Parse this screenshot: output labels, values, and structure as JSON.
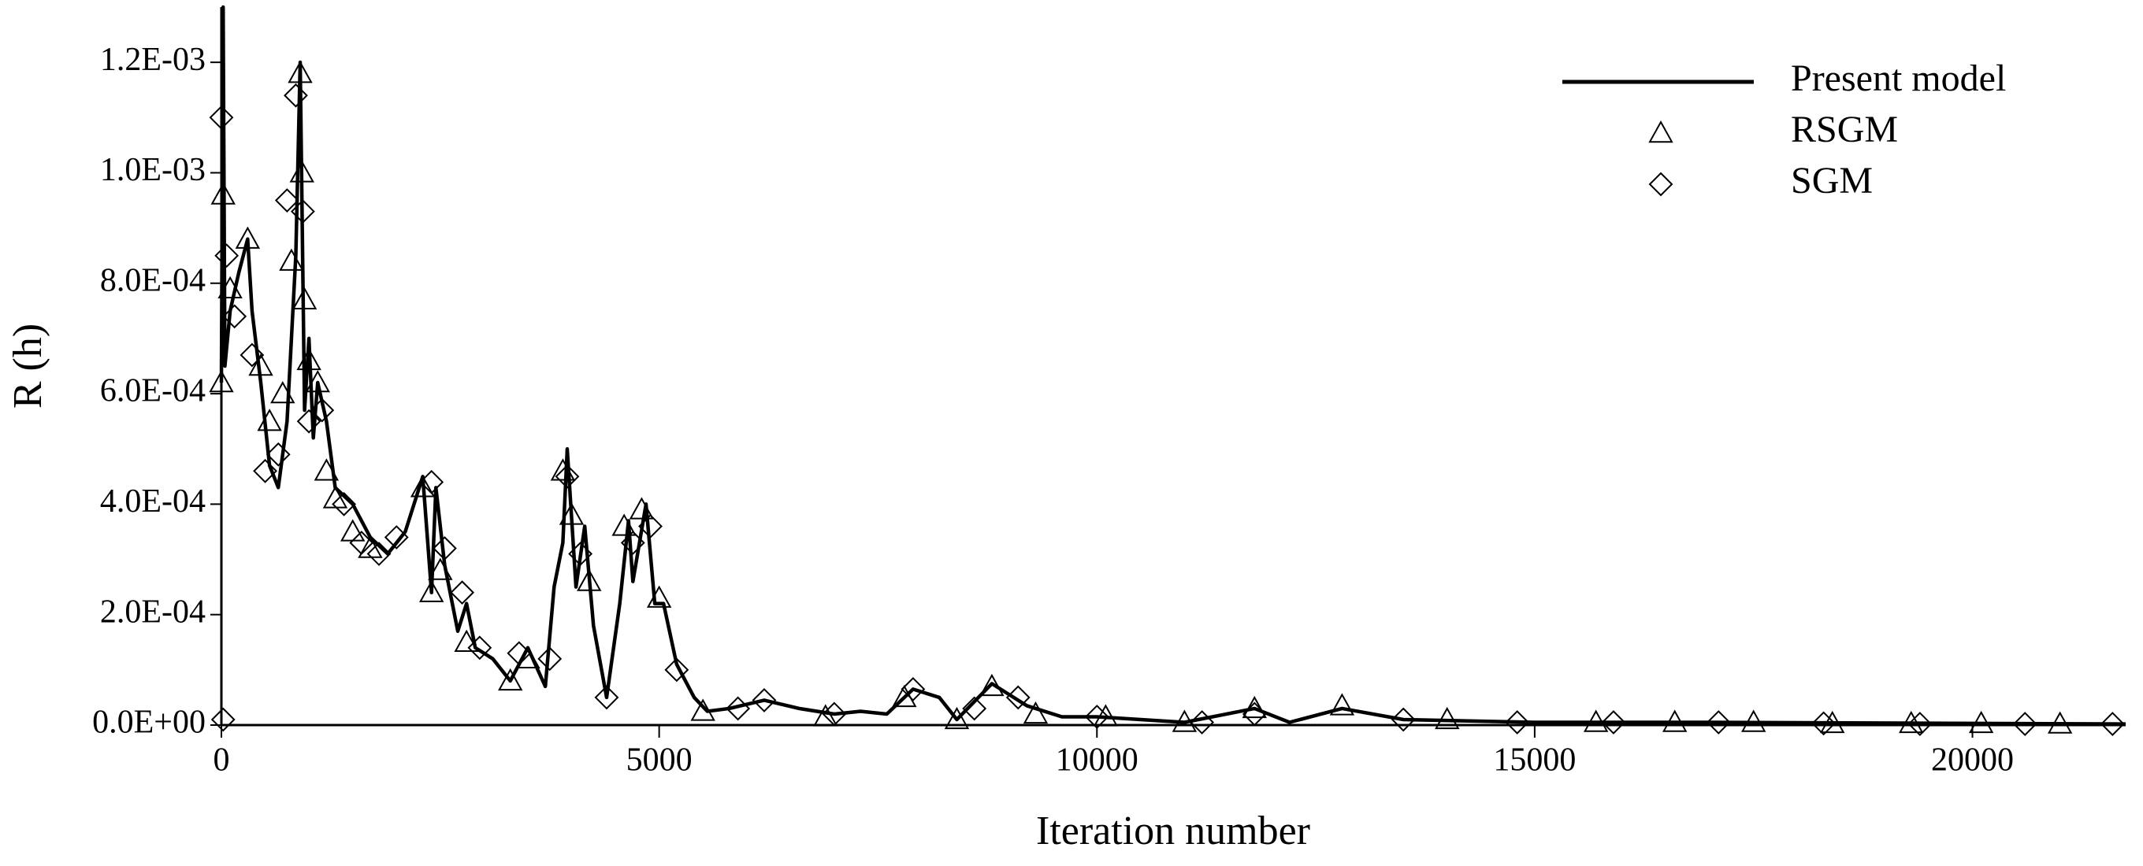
{
  "chart_data": {
    "type": "line",
    "xlabel": "Iteration number",
    "ylabel": "R (h)",
    "xlim": [
      0,
      21750
    ],
    "xticks": [
      0,
      5000,
      10000,
      15000,
      20000
    ],
    "ylim": [
      0,
      0.0013
    ],
    "yticks": [
      {
        "value": 0,
        "label": "0.0E+00"
      },
      {
        "value": 0.0002,
        "label": "2.0E-04"
      },
      {
        "value": 0.0004,
        "label": "4.0E-04"
      },
      {
        "value": 0.0006,
        "label": "6.0E-04"
      },
      {
        "value": 0.0008,
        "label": "8.0E-04"
      },
      {
        "value": 0.001,
        "label": "1.0E-03"
      },
      {
        "value": 0.0012,
        "label": "1.2E-03"
      }
    ],
    "legend": "upper right",
    "series": [
      {
        "name": "Present model",
        "color": "#000000",
        "marker": "none",
        "x": [
          0,
          20,
          40,
          100,
          200,
          300,
          350,
          450,
          550,
          650,
          750,
          850,
          900,
          950,
          1000,
          1050,
          1100,
          1200,
          1300,
          1500,
          1700,
          1900,
          2100,
          2300,
          2400,
          2450,
          2550,
          2700,
          2800,
          2900,
          3100,
          3300,
          3500,
          3700,
          3800,
          3900,
          3950,
          4050,
          4150,
          4250,
          4400,
          4550,
          4650,
          4700,
          4850,
          4950,
          5050,
          5200,
          5400,
          5550,
          5800,
          6200,
          6600,
          7000,
          7300,
          7600,
          7900,
          8200,
          8400,
          8800,
          9200,
          9600,
          10000,
          10500,
          11000,
          11800,
          12200,
          12800,
          13500,
          15000,
          17000,
          21750
        ],
        "values": [
          0.00062,
          0.0013,
          0.00065,
          0.00075,
          0.00082,
          0.00088,
          0.00075,
          0.00062,
          0.00047,
          0.00043,
          0.00055,
          0.00085,
          0.0012,
          0.00057,
          0.0007,
          0.00052,
          0.00062,
          0.00055,
          0.00043,
          0.0004,
          0.00034,
          0.00031,
          0.00035,
          0.00045,
          0.00024,
          0.00043,
          0.00029,
          0.00017,
          0.00022,
          0.00014,
          0.00012,
          8e-05,
          0.00014,
          7e-05,
          0.00025,
          0.00033,
          0.0005,
          0.00025,
          0.00036,
          0.00018,
          5e-05,
          0.00022,
          0.00037,
          0.00026,
          0.0004,
          0.00022,
          0.00022,
          0.00011,
          5e-05,
          2.5e-05,
          3e-05,
          4.5e-05,
          3e-05,
          2e-05,
          2.5e-05,
          2e-05,
          6.5e-05,
          5e-05,
          1e-05,
          7.5e-05,
          3.5e-05,
          1.5e-05,
          1.5e-05,
          1e-05,
          5e-06,
          3e-05,
          5e-06,
          3e-05,
          1e-05,
          5e-06,
          5e-06,
          2e-06
        ]
      },
      {
        "name": "RSGM",
        "color": "#000000",
        "marker": "triangle",
        "x": [
          0,
          20,
          100,
          300,
          450,
          550,
          700,
          800,
          900,
          920,
          950,
          1000,
          1100,
          1200,
          1300,
          1500,
          1700,
          2300,
          2400,
          2500,
          2800,
          3300,
          3500,
          3900,
          4000,
          4200,
          4600,
          4800,
          5000,
          5500,
          6900,
          7800,
          8400,
          8800,
          9300,
          10100,
          11000,
          11800,
          12800,
          14000,
          15700,
          16600,
          17500,
          18400,
          19300,
          20100,
          21000
        ],
        "values": [
          0.00062,
          0.00096,
          0.00079,
          0.00088,
          0.00065,
          0.00055,
          0.0006,
          0.00084,
          0.00118,
          0.001,
          0.00077,
          0.00066,
          0.00062,
          0.00046,
          0.00041,
          0.00035,
          0.00032,
          0.00043,
          0.00024,
          0.00028,
          0.00015,
          8e-05,
          0.00012,
          0.00046,
          0.00038,
          0.00026,
          0.00036,
          0.00039,
          0.00023,
          2.5e-05,
          1.5e-05,
          5e-05,
          1e-05,
          7e-05,
          2e-05,
          1.5e-05,
          5e-06,
          3e-05,
          3.5e-05,
          1e-05,
          5e-06,
          5e-06,
          5e-06,
          3e-06,
          3e-06,
          3e-06,
          2e-06
        ]
      },
      {
        "name": "SGM",
        "color": "#000000",
        "marker": "diamond",
        "x": [
          0,
          20,
          60,
          150,
          350,
          500,
          650,
          750,
          850,
          930,
          1000,
          1150,
          1400,
          1600,
          1800,
          2000,
          2400,
          2550,
          2750,
          2950,
          3400,
          3750,
          3950,
          4100,
          4400,
          4700,
          4900,
          5200,
          5900,
          6200,
          7000,
          7900,
          8600,
          9100,
          10000,
          11200,
          11800,
          13500,
          14800,
          15900,
          17100,
          18300,
          19400,
          20600,
          21600
        ],
        "values": [
          0.0011,
          1e-05,
          0.00085,
          0.00074,
          0.00067,
          0.00046,
          0.00049,
          0.00095,
          0.00114,
          0.00093,
          0.00055,
          0.00057,
          0.0004,
          0.00033,
          0.00031,
          0.00034,
          0.00044,
          0.00032,
          0.00024,
          0.00014,
          0.00013,
          0.00012,
          0.00045,
          0.00031,
          5e-05,
          0.00033,
          0.00036,
          0.0001,
          3e-05,
          4.5e-05,
          2e-05,
          6.5e-05,
          3e-05,
          5e-05,
          1.5e-05,
          5e-06,
          2e-05,
          1e-05,
          5e-06,
          5e-06,
          5e-06,
          3e-06,
          2e-06,
          2e-06,
          2e-06
        ]
      }
    ]
  }
}
